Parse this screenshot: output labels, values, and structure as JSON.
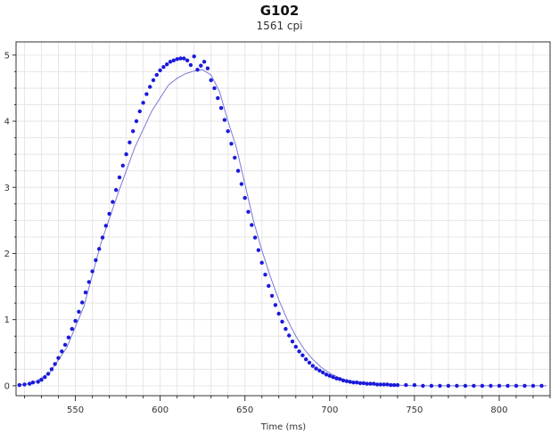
{
  "chart_data": {
    "type": "scatter",
    "title": "G102",
    "subtitle": "1561 cpi",
    "xlabel": "Time (ms)",
    "ylabel": "",
    "xlim": [
      515,
      830
    ],
    "ylim": [
      -0.15,
      5.2
    ],
    "xticks": [
      550,
      600,
      650,
      700,
      750,
      800
    ],
    "yticks": [
      0,
      1,
      2,
      3,
      4,
      5
    ],
    "grid": true,
    "colors": {
      "points": "#1a1adb",
      "fit": "#7a7ad8",
      "grid": "#e6e6e6",
      "axis": "#333333"
    },
    "series": [
      {
        "kind": "points",
        "x": [
          517,
          520,
          523,
          525,
          528,
          530,
          532,
          534,
          536,
          538,
          540,
          542,
          544,
          546,
          548,
          550,
          552,
          554,
          556,
          558,
          560,
          562,
          564,
          566,
          568,
          570,
          572,
          574,
          576,
          578,
          580,
          582,
          584,
          586,
          588,
          590,
          592,
          594,
          596,
          598,
          600,
          602,
          604,
          606,
          608,
          610,
          612,
          614,
          616,
          618,
          620,
          622,
          624,
          626,
          628,
          630,
          632,
          634,
          636,
          638,
          640,
          642,
          644,
          646,
          648,
          650,
          652,
          654,
          656,
          658,
          660,
          662,
          664,
          666,
          668,
          670,
          672,
          674,
          676,
          678,
          680,
          682,
          684,
          686,
          688,
          690,
          692,
          694,
          696,
          698,
          700,
          702,
          704,
          706,
          708,
          710,
          712,
          714,
          716,
          718,
          720,
          722,
          724,
          726,
          728,
          730,
          732,
          734,
          736,
          738,
          740,
          745,
          750,
          755,
          760,
          765,
          770,
          775,
          780,
          785,
          790,
          795,
          800,
          805,
          810,
          815,
          820,
          825
        ],
        "y": [
          0.01,
          0.02,
          0.03,
          0.05,
          0.06,
          0.09,
          0.13,
          0.18,
          0.25,
          0.33,
          0.42,
          0.52,
          0.62,
          0.73,
          0.86,
          0.98,
          1.12,
          1.26,
          1.41,
          1.57,
          1.73,
          1.9,
          2.07,
          2.24,
          2.42,
          2.6,
          2.78,
          2.96,
          3.15,
          3.33,
          3.5,
          3.68,
          3.85,
          4.0,
          4.15,
          4.28,
          4.41,
          4.52,
          4.62,
          4.7,
          4.77,
          4.82,
          4.86,
          4.9,
          4.92,
          4.94,
          4.95,
          4.95,
          4.92,
          4.85,
          4.98,
          4.78,
          4.84,
          4.9,
          4.8,
          4.62,
          4.5,
          4.35,
          4.2,
          4.02,
          3.85,
          3.66,
          3.45,
          3.25,
          3.05,
          2.84,
          2.63,
          2.43,
          2.24,
          2.05,
          1.86,
          1.68,
          1.51,
          1.36,
          1.22,
          1.09,
          0.97,
          0.86,
          0.76,
          0.67,
          0.59,
          0.52,
          0.46,
          0.4,
          0.35,
          0.3,
          0.26,
          0.23,
          0.2,
          0.17,
          0.15,
          0.13,
          0.11,
          0.1,
          0.08,
          0.07,
          0.06,
          0.05,
          0.05,
          0.04,
          0.04,
          0.03,
          0.03,
          0.03,
          0.02,
          0.02,
          0.02,
          0.02,
          0.01,
          0.01,
          0.01,
          0.01,
          0.01,
          0.0,
          0.0,
          0.0,
          0.0,
          0.0,
          0.0,
          0.0,
          0.0,
          0.0,
          0.0,
          0.0,
          0.0,
          0.0,
          0.0,
          0.0
        ]
      },
      {
        "kind": "line",
        "x": [
          517,
          525,
          535,
          545,
          555,
          565,
          575,
          585,
          595,
          605,
          610,
          615,
          620,
          625,
          630,
          635,
          640,
          645,
          650,
          655,
          660,
          665,
          670,
          675,
          680,
          685,
          690,
          695,
          700,
          705,
          710,
          715,
          720,
          725,
          730,
          740,
          750,
          760,
          770,
          780,
          790,
          800,
          810,
          820,
          828
        ],
        "y": [
          0.01,
          0.04,
          0.2,
          0.58,
          1.2,
          2.15,
          2.9,
          3.6,
          4.15,
          4.55,
          4.65,
          4.72,
          4.76,
          4.78,
          4.7,
          4.45,
          4.0,
          3.6,
          3.05,
          2.5,
          2.05,
          1.65,
          1.3,
          1.0,
          0.75,
          0.55,
          0.4,
          0.28,
          0.19,
          0.13,
          0.08,
          0.05,
          0.03,
          0.02,
          0.01,
          0.01,
          0.0,
          0.0,
          0.0,
          0.0,
          0.0,
          0.0,
          0.0,
          0.0,
          0.0
        ]
      }
    ]
  }
}
